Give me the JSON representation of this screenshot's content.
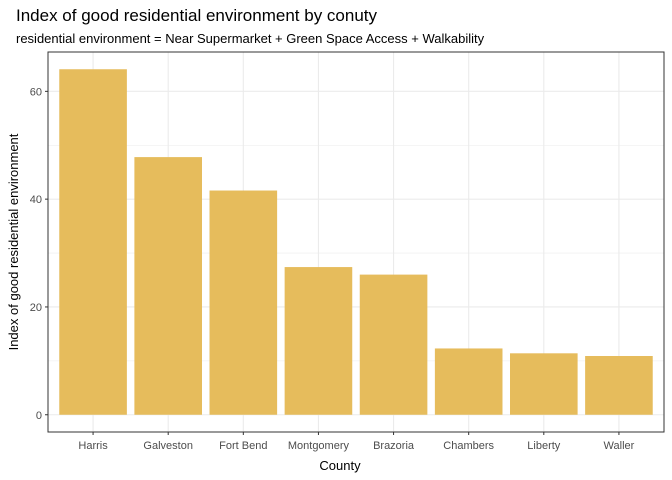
{
  "chart_data": {
    "type": "bar",
    "title": "Index of good residential environment by conuty",
    "subtitle": "residential environment = Near Supermarket + Green Space Access + Walkability",
    "xlabel": "County",
    "ylabel": "Index of good residential environment",
    "categories": [
      "Harris",
      "Galveston",
      "Fort Bend",
      "Montgomery",
      "Brazoria",
      "Chambers",
      "Liberty",
      "Waller"
    ],
    "values": [
      64.1,
      47.8,
      41.6,
      27.4,
      26.0,
      12.3,
      11.4,
      10.9
    ],
    "ylim": [
      -3.2,
      67.3
    ],
    "yticks": [
      0,
      20,
      40,
      60
    ],
    "ytick_labels": [
      "0",
      "20",
      "40",
      "60"
    ],
    "grid": true,
    "bar_color": "#E6BC5C",
    "grid_color": "#EBEBEB",
    "panel_border_color": "#333333"
  }
}
